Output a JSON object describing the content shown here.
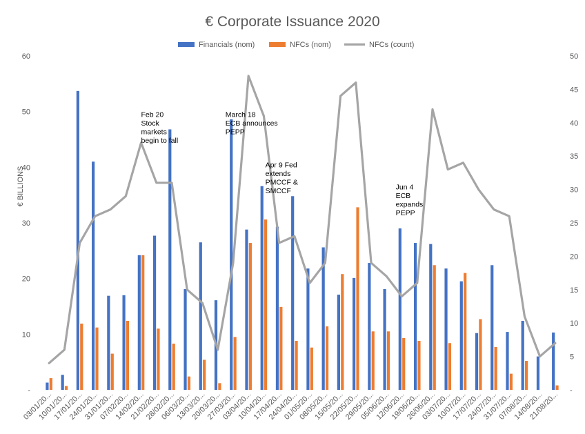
{
  "chart_data": {
    "type": "bar",
    "title": "€ Corporate Issuance 2020",
    "ylabel": "€ BILLIONS",
    "ylim": [
      0,
      60
    ],
    "y2lim": [
      0,
      50
    ],
    "yticks": [
      "-",
      "10",
      "20",
      "30",
      "40",
      "50",
      "60"
    ],
    "y2ticks": [
      "-",
      "5",
      "10",
      "15",
      "20",
      "25",
      "30",
      "35",
      "40",
      "45",
      "50"
    ],
    "legend_position": "top",
    "grid": false,
    "categories": [
      "03/01/20...",
      "10/01/20...",
      "17/01/20...",
      "24/01/20...",
      "31/01/20...",
      "07/02/20...",
      "14/02/20...",
      "21/02/20...",
      "28/02/20...",
      "06/03/20...",
      "13/03/20...",
      "20/03/20...",
      "27/03/20...",
      "03/04/20...",
      "10/04/20...",
      "17/04/20...",
      "24/04/20...",
      "01/05/20...",
      "08/05/20...",
      "15/05/20...",
      "22/05/20...",
      "29/05/20...",
      "05/06/20...",
      "12/06/20...",
      "19/06/20...",
      "26/06/20...",
      "03/07/20...",
      "10/07/20...",
      "17/07/20...",
      "24/07/20...",
      "31/07/20...",
      "07/08/20...",
      "14/08/20...",
      "21/08/20..."
    ],
    "series": [
      {
        "name": "Financials (nom)",
        "type": "bar",
        "axis": "left",
        "color": "#4472C4",
        "values": [
          1.3,
          2.7,
          53.7,
          41.0,
          16.9,
          17.0,
          24.2,
          27.7,
          46.8,
          18.1,
          26.5,
          16.1,
          48.6,
          28.8,
          36.6,
          29.3,
          34.8,
          21.8,
          25.6,
          17.1,
          20.1,
          22.8,
          18.1,
          29.0,
          26.4,
          26.2,
          21.8,
          19.5,
          10.2,
          22.4,
          10.4,
          12.4,
          6.0,
          10.3
        ]
      },
      {
        "name": "NFCs (nom)",
        "type": "bar",
        "axis": "left",
        "color": "#ED7D31",
        "values": [
          2.1,
          0.7,
          11.9,
          11.2,
          6.5,
          12.4,
          24.2,
          11.0,
          8.3,
          2.4,
          5.4,
          1.2,
          9.5,
          26.4,
          30.6,
          14.9,
          8.8,
          7.6,
          11.4,
          20.8,
          32.8,
          10.5,
          10.5,
          9.3,
          8.8,
          22.4,
          8.4,
          21.0,
          12.7,
          7.7,
          2.9,
          5.2,
          0,
          0.8
        ]
      },
      {
        "name": "NFCs (count)",
        "type": "line",
        "axis": "right",
        "color": "#A5A5A5",
        "values": [
          4,
          6,
          22,
          26,
          27,
          29,
          37,
          31,
          31,
          15,
          13,
          6,
          19,
          47,
          41,
          22,
          23,
          16,
          19,
          44,
          46,
          19,
          17,
          14,
          16,
          42,
          33,
          34,
          30,
          27,
          26,
          11,
          5,
          7
        ]
      }
    ],
    "annotations": [
      {
        "lines": [
          "Feb 20",
          "Stock",
          "markets",
          "begin to fall"
        ],
        "category_index": 6,
        "y_value": 49
      },
      {
        "lines": [
          "March 18",
          "ECB announces",
          "PEPP"
        ],
        "category_index": 11.5,
        "y_value": 49
      },
      {
        "lines": [
          "Apr 9 Fed",
          "extends",
          "PMCCF &",
          "SMCCF"
        ],
        "category_index": 14.1,
        "y_value": 40
      },
      {
        "lines": [
          "Jun 4",
          "ECB",
          "expands",
          "PEPP"
        ],
        "category_index": 22.6,
        "y_value": 36
      }
    ]
  }
}
